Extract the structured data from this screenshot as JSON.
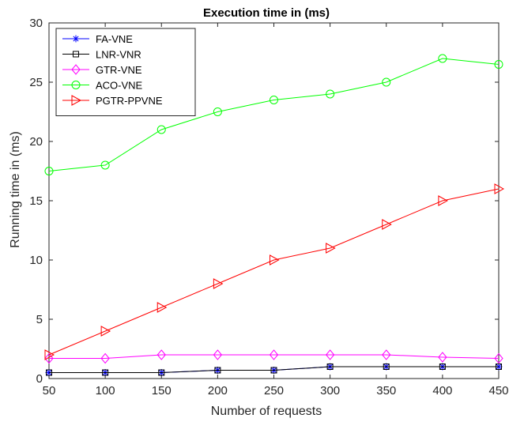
{
  "chart_data": {
    "type": "line",
    "title": "Execution time in (ms)",
    "xlabel": "Number of requests",
    "ylabel": "Running time in (ms)",
    "x": [
      50,
      100,
      150,
      200,
      250,
      300,
      350,
      400,
      450
    ],
    "xlim": [
      50,
      450
    ],
    "ylim": [
      0,
      30
    ],
    "xticks": [
      50,
      100,
      150,
      200,
      250,
      300,
      350,
      400,
      450
    ],
    "yticks": [
      0,
      5,
      10,
      15,
      20,
      25,
      30
    ],
    "grid": false,
    "legend_position": "top-left",
    "series": [
      {
        "name": "FA-VNE",
        "color": "#0000ff",
        "marker": "asterisk",
        "values": [
          0.5,
          0.5,
          0.5,
          0.7,
          0.7,
          1.0,
          1.0,
          1.0,
          1.0
        ]
      },
      {
        "name": "LNR-VNR",
        "color": "#000000",
        "marker": "square",
        "values": [
          0.5,
          0.5,
          0.5,
          0.7,
          0.7,
          1.0,
          1.0,
          1.0,
          1.0
        ]
      },
      {
        "name": "GTR-VNE",
        "color": "#ff00ff",
        "marker": "diamond",
        "values": [
          1.7,
          1.7,
          2.0,
          2.0,
          2.0,
          2.0,
          2.0,
          1.8,
          1.7
        ]
      },
      {
        "name": "ACO-VNE",
        "color": "#00ff00",
        "marker": "circle",
        "values": [
          17.5,
          18.0,
          21.0,
          22.5,
          23.5,
          24.0,
          25.0,
          27.0,
          26.5
        ]
      },
      {
        "name": "PGTR-PPVNE",
        "color": "#ff0000",
        "marker": "triangle-right",
        "values": [
          2.0,
          4.0,
          6.0,
          8.0,
          10.0,
          11.0,
          13.0,
          15.0,
          16.0
        ]
      }
    ]
  }
}
